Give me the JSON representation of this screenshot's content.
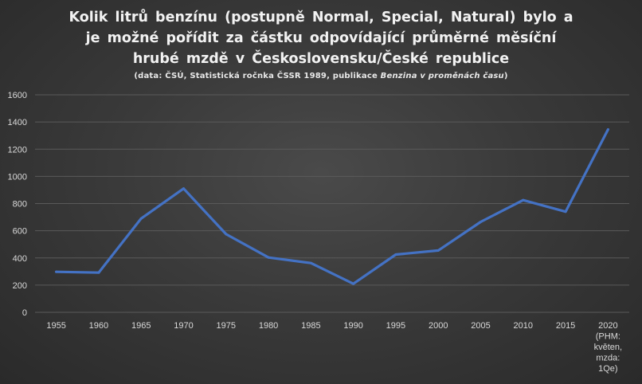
{
  "title": {
    "lines": [
      "Kolik litrů benzínu (postupně Normal, Special, Natural) bylo a",
      "je možné pořídit za částku odpovídající průměrné měsíční",
      "hrubé mzdě v Československu/České republice"
    ],
    "source_prefix": "(data: ČSÚ, Statistická ročnka ČSSR 1989, publikace ",
    "source_italic": "Benzina v proměnách času",
    "source_suffix": ")"
  },
  "colors": {
    "line": "#4472c4",
    "gridline": "#5a5a5a",
    "text": "#d9d9d9"
  },
  "chart_data": {
    "type": "line",
    "title": "Kolik litrů benzínu (postupně Normal, Special, Natural) bylo a je možné pořídit za částku odpovídající průměrné měsíční hrubé mzdě v Československu/České republice",
    "subtitle": "(data: ČSÚ, Statistická ročnka ČSSR 1989, publikace Benzina v proměnách času)",
    "xlabel": "",
    "ylabel": "",
    "categories": [
      "1955",
      "1960",
      "1965",
      "1970",
      "1975",
      "1980",
      "1985",
      "1990",
      "1995",
      "2000",
      "2005",
      "2010",
      "2015",
      "2020 (PHM: květen, mzda: 1Qe)"
    ],
    "category_label_lines": [
      [
        "1955"
      ],
      [
        "1960"
      ],
      [
        "1965"
      ],
      [
        "1970"
      ],
      [
        "1975"
      ],
      [
        "1980"
      ],
      [
        "1985"
      ],
      [
        "1990"
      ],
      [
        "1995"
      ],
      [
        "2000"
      ],
      [
        "2005"
      ],
      [
        "2010"
      ],
      [
        "2015"
      ],
      [
        "2020",
        "(PHM:",
        "květen,",
        "mzda:",
        "1Qe)"
      ]
    ],
    "values": [
      298,
      292,
      690,
      910,
      575,
      403,
      362,
      210,
      425,
      455,
      665,
      825,
      740,
      1345
    ],
    "ylim": [
      0,
      1600
    ],
    "yticks": [
      0,
      200,
      400,
      600,
      800,
      1000,
      1200,
      1400,
      1600
    ],
    "grid": true,
    "legend": "none"
  }
}
